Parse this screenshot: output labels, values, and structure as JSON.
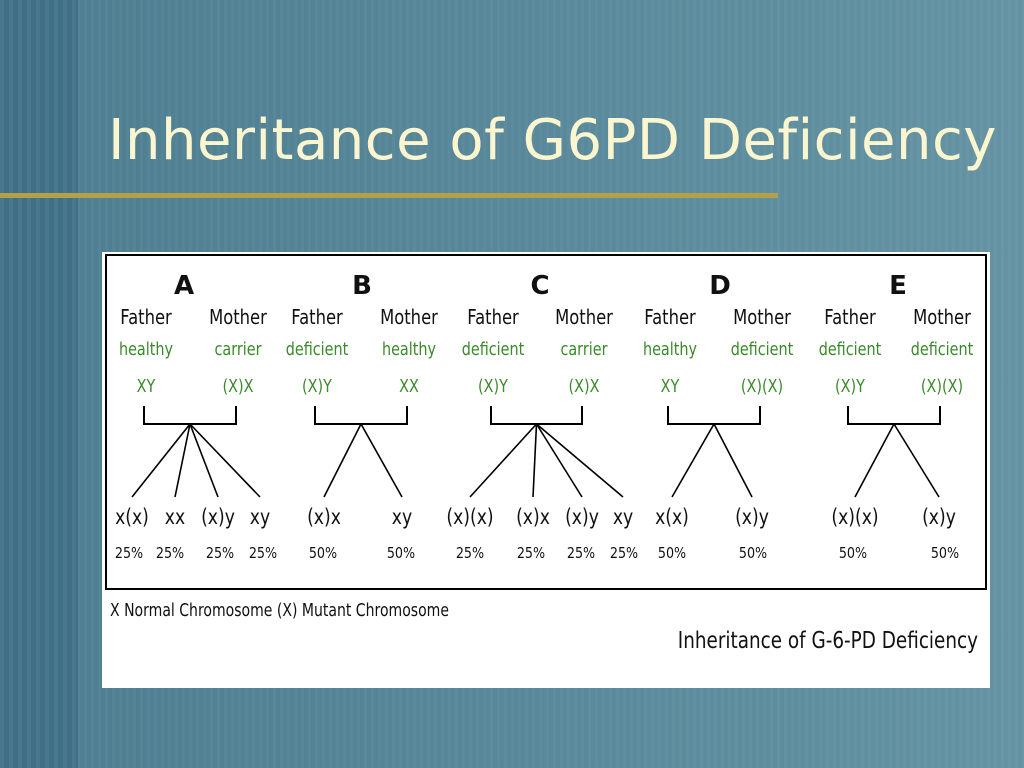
{
  "slide": {
    "title": "Inheritance of G6PD Deficiency"
  },
  "figure": {
    "caption": "Inheritance of G-6-PD Deficiency",
    "legend": "X  Normal Chromosome   (X) Mutant Chromosome",
    "crosses": [
      {
        "letter": "A",
        "father": {
          "label": "Father",
          "status": "healthy",
          "genotype": "XY"
        },
        "mother": {
          "label": "Mother",
          "status": "carrier",
          "genotype": "(X)X"
        },
        "offspring": [
          {
            "genotype": "x(x)",
            "pct": "25%"
          },
          {
            "genotype": "xx",
            "pct": "25%"
          },
          {
            "genotype": "(x)y",
            "pct": "25%"
          },
          {
            "genotype": "xy",
            "pct": "25%"
          }
        ]
      },
      {
        "letter": "B",
        "father": {
          "label": "Father",
          "status": "deficient",
          "genotype": "(X)Y"
        },
        "mother": {
          "label": "Mother",
          "status": "healthy",
          "genotype": "XX"
        },
        "offspring": [
          {
            "genotype": "(x)x",
            "pct": "50%"
          },
          {
            "genotype": "xy",
            "pct": "50%"
          }
        ]
      },
      {
        "letter": "C",
        "father": {
          "label": "Father",
          "status": "deficient",
          "genotype": "(X)Y"
        },
        "mother": {
          "label": "Mother",
          "status": "carrier",
          "genotype": "(X)X"
        },
        "offspring": [
          {
            "genotype": "(x)(x)",
            "pct": "25%"
          },
          {
            "genotype": "(x)x",
            "pct": "25%"
          },
          {
            "genotype": "(x)y",
            "pct": "25%"
          },
          {
            "genotype": "xy",
            "pct": "25%"
          }
        ]
      },
      {
        "letter": "D",
        "father": {
          "label": "Father",
          "status": "healthy",
          "genotype": "XY"
        },
        "mother": {
          "label": "Mother",
          "status": "deficient",
          "genotype": "(X)(X)"
        },
        "offspring": [
          {
            "genotype": "x(x)",
            "pct": "50%"
          },
          {
            "genotype": "(x)y",
            "pct": "50%"
          }
        ]
      },
      {
        "letter": "E",
        "father": {
          "label": "Father",
          "status": "deficient",
          "genotype": "(X)Y"
        },
        "mother": {
          "label": "Mother",
          "status": "deficient",
          "genotype": "(X)(X)"
        },
        "offspring": [
          {
            "genotype": "(x)(x)",
            "pct": "50%"
          },
          {
            "genotype": "(x)y",
            "pct": "50%"
          }
        ]
      }
    ],
    "colors": {
      "status_green": "#3a8a2a",
      "text": "#111111",
      "title_text": "#fbf6cf",
      "rule": "#b5a04a"
    }
  }
}
